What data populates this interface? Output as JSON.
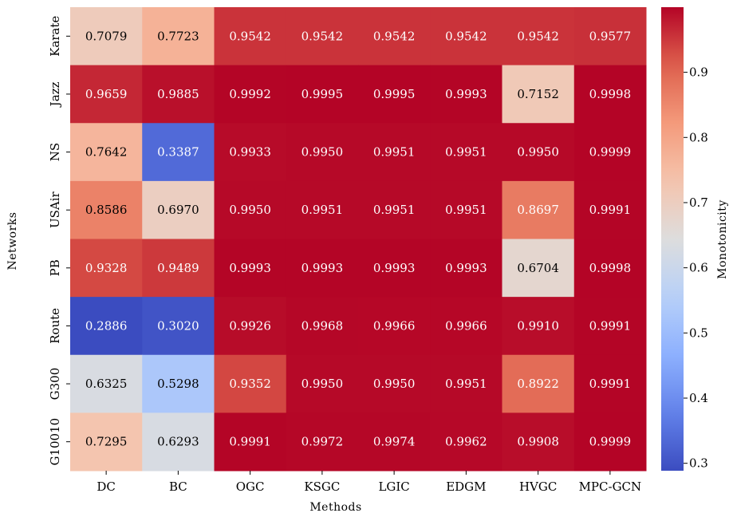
{
  "chart_data": {
    "type": "heatmap",
    "xlabel": "Methods",
    "ylabel": "Networks",
    "colorbar_label": "Monotonicity",
    "colormap": "coolwarm",
    "vmin": 0.2886,
    "vmax": 0.9999,
    "colorbar_ticks": [
      "0.3",
      "0.4",
      "0.5",
      "0.6",
      "0.7",
      "0.8",
      "0.9"
    ],
    "x_categories": [
      "DC",
      "BC",
      "OGC",
      "KSGC",
      "LGIC",
      "EDGM",
      "HVGC",
      "MPC-GCN"
    ],
    "y_categories": [
      "Karate",
      "Jazz",
      "NS",
      "USAir",
      "PB",
      "Route",
      "G300",
      "G10010"
    ],
    "values": [
      [
        0.7079,
        0.7723,
        0.9542,
        0.9542,
        0.9542,
        0.9542,
        0.9542,
        0.9577
      ],
      [
        0.9659,
        0.9885,
        0.9992,
        0.9995,
        0.9995,
        0.9993,
        0.7152,
        0.9998
      ],
      [
        0.7642,
        0.3387,
        0.9933,
        0.995,
        0.9951,
        0.9951,
        0.995,
        0.9999
      ],
      [
        0.8586,
        0.697,
        0.995,
        0.9951,
        0.9951,
        0.9951,
        0.8697,
        0.9991
      ],
      [
        0.9328,
        0.9489,
        0.9993,
        0.9993,
        0.9993,
        0.9993,
        0.6704,
        0.9998
      ],
      [
        0.2886,
        0.302,
        0.9926,
        0.9968,
        0.9966,
        0.9966,
        0.991,
        0.9991
      ],
      [
        0.6325,
        0.5298,
        0.9352,
        0.995,
        0.995,
        0.9951,
        0.8922,
        0.9991
      ],
      [
        0.7295,
        0.6293,
        0.9991,
        0.9972,
        0.9974,
        0.9962,
        0.9908,
        0.9999
      ]
    ]
  }
}
